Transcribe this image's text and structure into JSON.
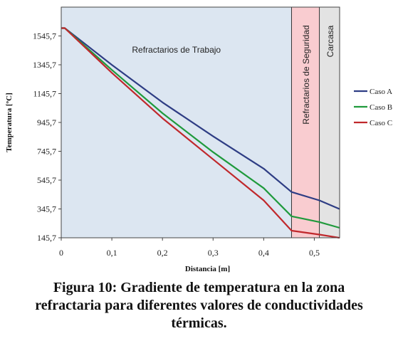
{
  "chart_data": {
    "type": "line",
    "title": "",
    "xlabel": "Distancia [m]",
    "ylabel": "Temperatura [ºC]",
    "xlim": [
      0,
      0.55
    ],
    "ylim": [
      145.7,
      1745.7
    ],
    "x_ticks": [
      "0",
      "0,1",
      "0,2",
      "0,3",
      "0,4",
      "0,5"
    ],
    "y_ticks": [
      "145,7",
      "345,7",
      "545,7",
      "745,7",
      "945,7",
      "1145,7",
      "1345,7",
      "1545,7"
    ],
    "regions": [
      {
        "label": "Refractarios de Trabajo",
        "x_start": 0,
        "x_end": 0.455,
        "color": "#dce6f1"
      },
      {
        "label": "Refractarios de Seguridad",
        "x_start": 0.455,
        "x_end": 0.51,
        "color": "#f9ccd0"
      },
      {
        "label": "Carcasa",
        "x_start": 0.51,
        "x_end": 0.55,
        "color": "#e3e3e3"
      }
    ],
    "series": [
      {
        "name": "Caso A",
        "color": "#2e3d84",
        "x": [
          0,
          0.007,
          0.1,
          0.2,
          0.3,
          0.4,
          0.455,
          0.51,
          0.55
        ],
        "y": [
          1600,
          1600,
          1345,
          1085,
          850,
          625,
          463,
          405,
          345
        ]
      },
      {
        "name": "Caso B",
        "color": "#1f9a3c",
        "x": [
          0,
          0.007,
          0.1,
          0.2,
          0.3,
          0.4,
          0.455,
          0.51,
          0.55
        ],
        "y": [
          1600,
          1600,
          1310,
          1010,
          740,
          490,
          295,
          255,
          215
        ]
      },
      {
        "name": "Caso C",
        "color": "#c0282c",
        "x": [
          0,
          0.007,
          0.1,
          0.2,
          0.3,
          0.4,
          0.455,
          0.51,
          0.55
        ],
        "y": [
          1600,
          1600,
          1290,
          975,
          690,
          405,
          195,
          168,
          145
        ]
      }
    ],
    "legend_position": "right",
    "grid": false
  },
  "caption": {
    "line1": "Figura 10: Gradiente de temperatura en la zona",
    "line2": "refractaria para diferentes valores de conductividades",
    "line3": "térmicas."
  }
}
